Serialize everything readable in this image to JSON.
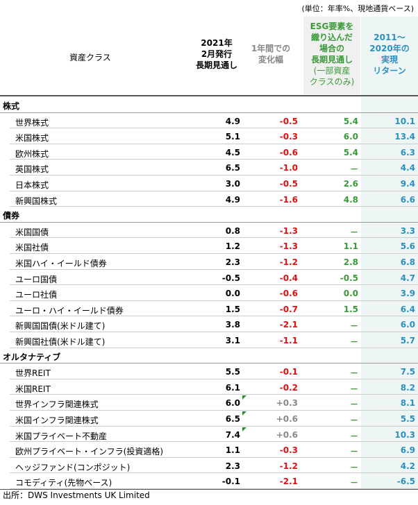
{
  "note": "(単位：年率%、現地通貨ベース)",
  "header": {
    "asset": "資産クラス",
    "forecast": [
      "2021年",
      "2月発行",
      "長期見通し"
    ],
    "change": [
      "1年間での",
      "変化幅"
    ],
    "esg": [
      "ESG要素を",
      "織り込んだ",
      "場合の",
      "長期見通し"
    ],
    "esg_sub": [
      "(一部資産",
      "クラスのみ)"
    ],
    "returns": [
      "2011～",
      "2020年の",
      "実現",
      "リターン"
    ]
  },
  "sections": [
    {
      "title": "株式",
      "rows": [
        [
          "世界株式",
          "4.9",
          "-0.5",
          "5.4",
          "10.1"
        ],
        [
          "米国株式",
          "5.1",
          "-0.3",
          "6.0",
          "13.4"
        ],
        [
          "欧州株式",
          "4.5",
          "-0.6",
          "5.4",
          "6.3"
        ],
        [
          "英国株式",
          "6.5",
          "-1.0",
          "－",
          "4.4"
        ],
        [
          "日本株式",
          "3.0",
          "-0.5",
          "2.6",
          "9.4"
        ],
        [
          "新興国株式",
          "4.9",
          "-1.6",
          "4.8",
          "6.6"
        ]
      ]
    },
    {
      "title": "債券",
      "rows": [
        [
          "米国国債",
          "0.8",
          "-1.3",
          "－",
          "3.3"
        ],
        [
          "米国社債",
          "1.2",
          "-1.3",
          "1.1",
          "5.6"
        ],
        [
          "米国ハイ・イールド債券",
          "2.3",
          "-1.2",
          "2.8",
          "6.8"
        ],
        [
          "ユーロ国債",
          "-0.5",
          "-0.4",
          "-0.5",
          "4.7"
        ],
        [
          "ユーロ社債",
          "0.0",
          "-0.6",
          "0.0",
          "3.9"
        ],
        [
          "ユーロ・ハイ・イールド債券",
          "1.5",
          "-0.7",
          "1.5",
          "6.4"
        ],
        [
          "新興国国債(米ドル建て)",
          "3.8",
          "-2.1",
          "－",
          "6.0"
        ],
        [
          "新興国社債(米ドル建て)",
          "3.1",
          "-1.1",
          "－",
          "5.7"
        ]
      ]
    },
    {
      "title": "オルタナティブ",
      "rows": [
        [
          "世界REIT",
          "5.5",
          "-0.1",
          "－",
          "7.5"
        ],
        [
          "米国REIT",
          "6.1",
          "-0.2",
          "－",
          "8.2"
        ],
        [
          "世界インフラ関連株式",
          "6.0",
          "+0.3",
          "－",
          "8.1"
        ],
        [
          "米国インフラ関連株式",
          "6.5",
          "+0.6",
          "－",
          "5.5"
        ],
        [
          "米国プライベート不動産",
          "7.4",
          "+0.6",
          "－",
          "10.3"
        ],
        [
          "欧州プライベート・インフラ(投資適格)",
          "1.1",
          "-0.3",
          "－",
          "6.9"
        ],
        [
          "ヘッジファンド(コンポジット)",
          "2.3",
          "-1.2",
          "－",
          "4.2"
        ],
        [
          "コモディティ(先物ベース)",
          "-0.1",
          "-2.1",
          "－",
          "-6.5"
        ]
      ]
    }
  ],
  "footer": "出所：DWS Investments UK Limited"
}
